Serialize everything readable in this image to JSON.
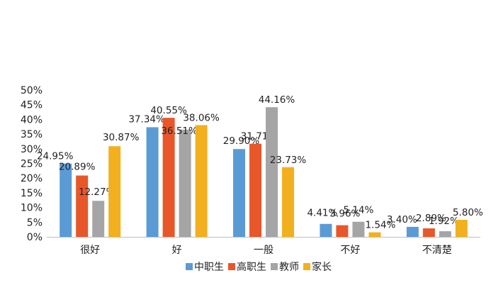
{
  "chart_data": {
    "type": "bar",
    "categories": [
      "很好",
      "好",
      "一般",
      "不好",
      "不清楚"
    ],
    "series": [
      {
        "name": "中职生",
        "color": "#5B9BD5",
        "values": [
          24.95,
          37.34,
          29.9,
          4.41,
          3.4
        ],
        "labels": [
          "24.95%",
          "37.34%",
          "29.90%",
          "4.41%",
          "3.40%"
        ]
      },
      {
        "name": "高职生",
        "color": "#E8572A",
        "values": [
          20.89,
          40.55,
          31.71,
          3.96,
          2.89
        ],
        "labels": [
          "20.89%",
          "40.55%",
          "31.71%",
          "3.96%",
          "2.89%"
        ]
      },
      {
        "name": "教师",
        "color": "#A5A5A5",
        "values": [
          12.27,
          36.51,
          44.16,
          5.14,
          1.92
        ],
        "labels": [
          "12.27%",
          "36.51%",
          "44.16%",
          "5.14%",
          "1.92%"
        ]
      },
      {
        "name": "家长",
        "color": "#F2B01E",
        "values": [
          30.87,
          38.06,
          23.73,
          1.54,
          5.8
        ],
        "labels": [
          "30.87%",
          "38.06%",
          "23.73%",
          "1.54%",
          "5.80%"
        ]
      }
    ],
    "yticks": [
      "0%",
      "5%",
      "10%",
      "15%",
      "20%",
      "25%",
      "30%",
      "35%",
      "40%",
      "45%",
      "50%"
    ],
    "ylim": [
      0,
      50
    ],
    "grid": false,
    "legend_position": "bottom"
  }
}
